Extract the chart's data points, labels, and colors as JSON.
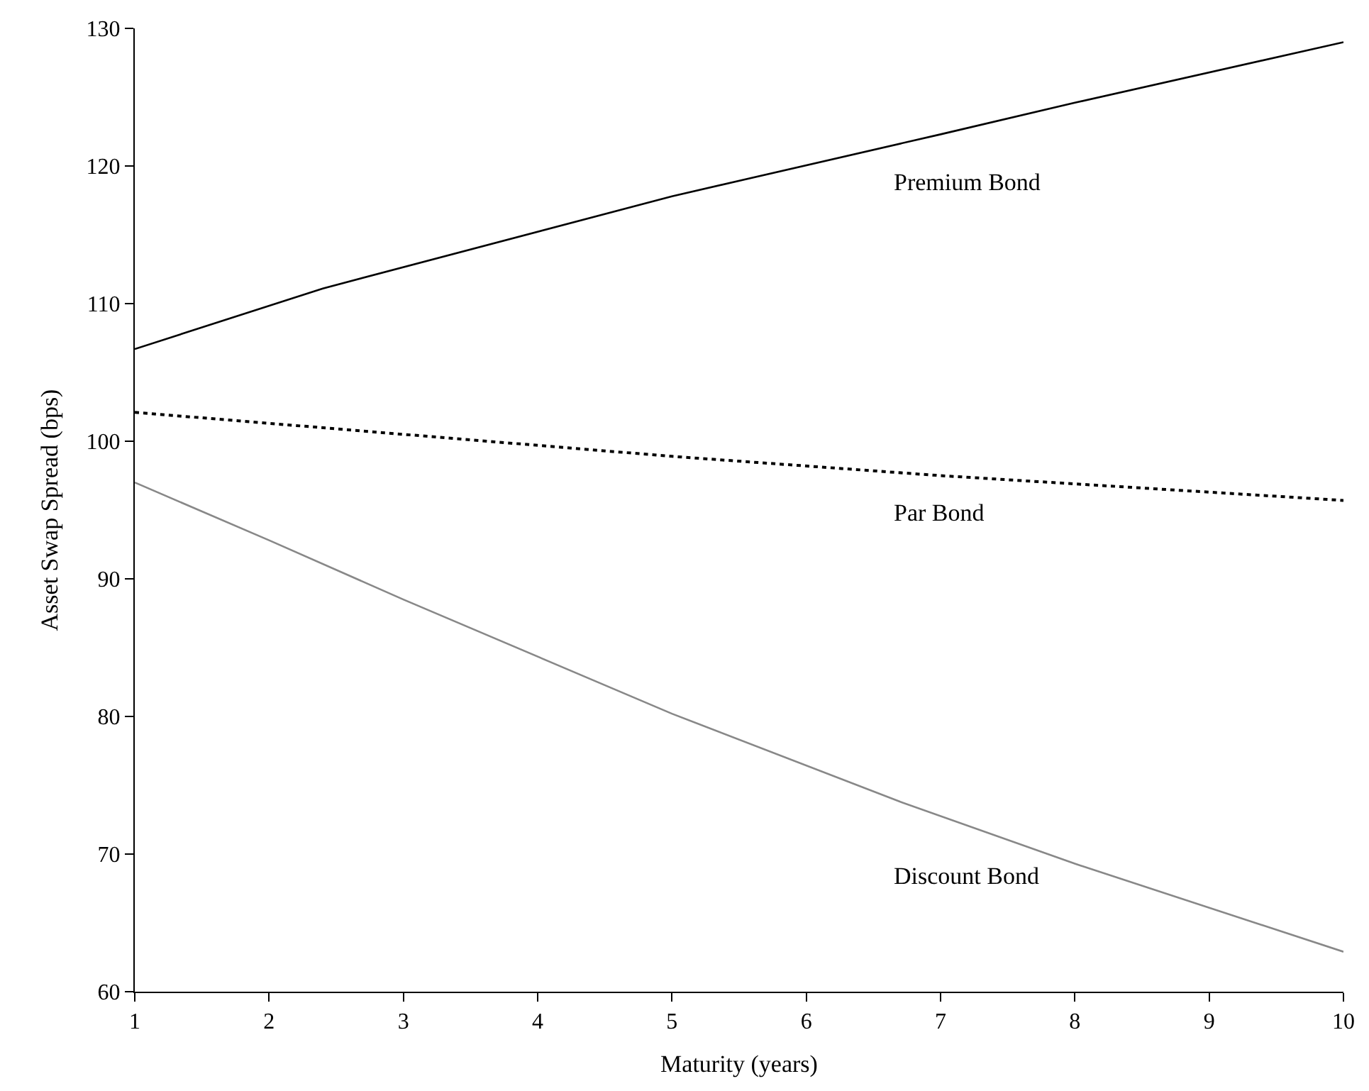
{
  "chart_data": {
    "type": "line",
    "xlabel": "Maturity (years)",
    "ylabel": "Asset Swap Spread (bps)",
    "series": [
      {
        "name": "Premium Bond",
        "color": "#000000",
        "line_style": "solid",
        "x": [
          1,
          2.4,
          5,
          7,
          8,
          10
        ],
        "values": [
          106.7,
          111.1,
          117.8,
          122.3,
          124.6,
          129
        ]
      },
      {
        "name": "Par Bond",
        "color": "#000000",
        "line_style": "dotted",
        "x": [
          1,
          5,
          7,
          10
        ],
        "values": [
          102.1,
          98.9,
          97.5,
          95.7
        ]
      },
      {
        "name": "Discount Bond",
        "color": "#888888",
        "line_style": "solid",
        "x": [
          1,
          2,
          3,
          5,
          6.7,
          8,
          10
        ],
        "values": [
          97,
          92.8,
          88.5,
          80.2,
          73.8,
          69.3,
          62.9
        ]
      }
    ],
    "xlim": [
      1,
      10
    ],
    "xticks": [
      1,
      2,
      3,
      4,
      5,
      6,
      7,
      8,
      9,
      10
    ],
    "ylim": [
      60,
      130
    ],
    "yticks": [
      60,
      70,
      80,
      90,
      100,
      110,
      120,
      130
    ],
    "legend": false,
    "marker": "none"
  }
}
